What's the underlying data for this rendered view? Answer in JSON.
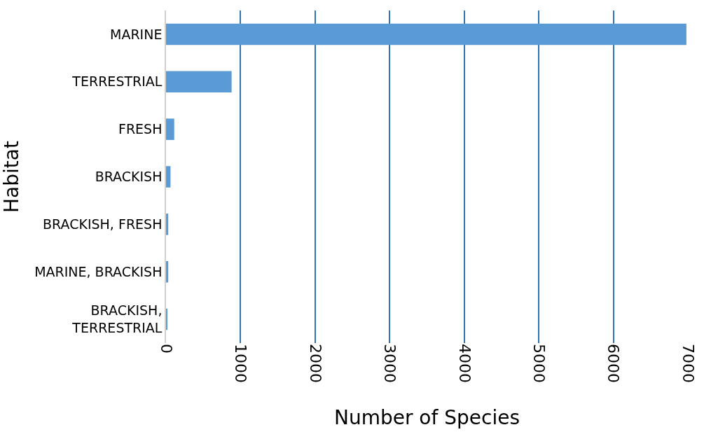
{
  "chart_data": {
    "type": "bar",
    "orientation": "horizontal",
    "xlabel": "Number of Species",
    "ylabel": "Habitat",
    "categories": [
      "MARINE",
      "TERRESTRIAL",
      "FRESH",
      "BRACKISH",
      "BRACKISH, FRESH",
      "MARINE, BRACKISH",
      "BRACKISH, TERRESTRIAL"
    ],
    "values": [
      6980,
      880,
      110,
      60,
      30,
      30,
      15
    ],
    "color": "#5b9bd5",
    "xlim": [
      0,
      7000
    ],
    "xticks": [
      0,
      1000,
      2000,
      3000,
      4000,
      5000,
      6000,
      7000
    ],
    "grid": "x"
  }
}
